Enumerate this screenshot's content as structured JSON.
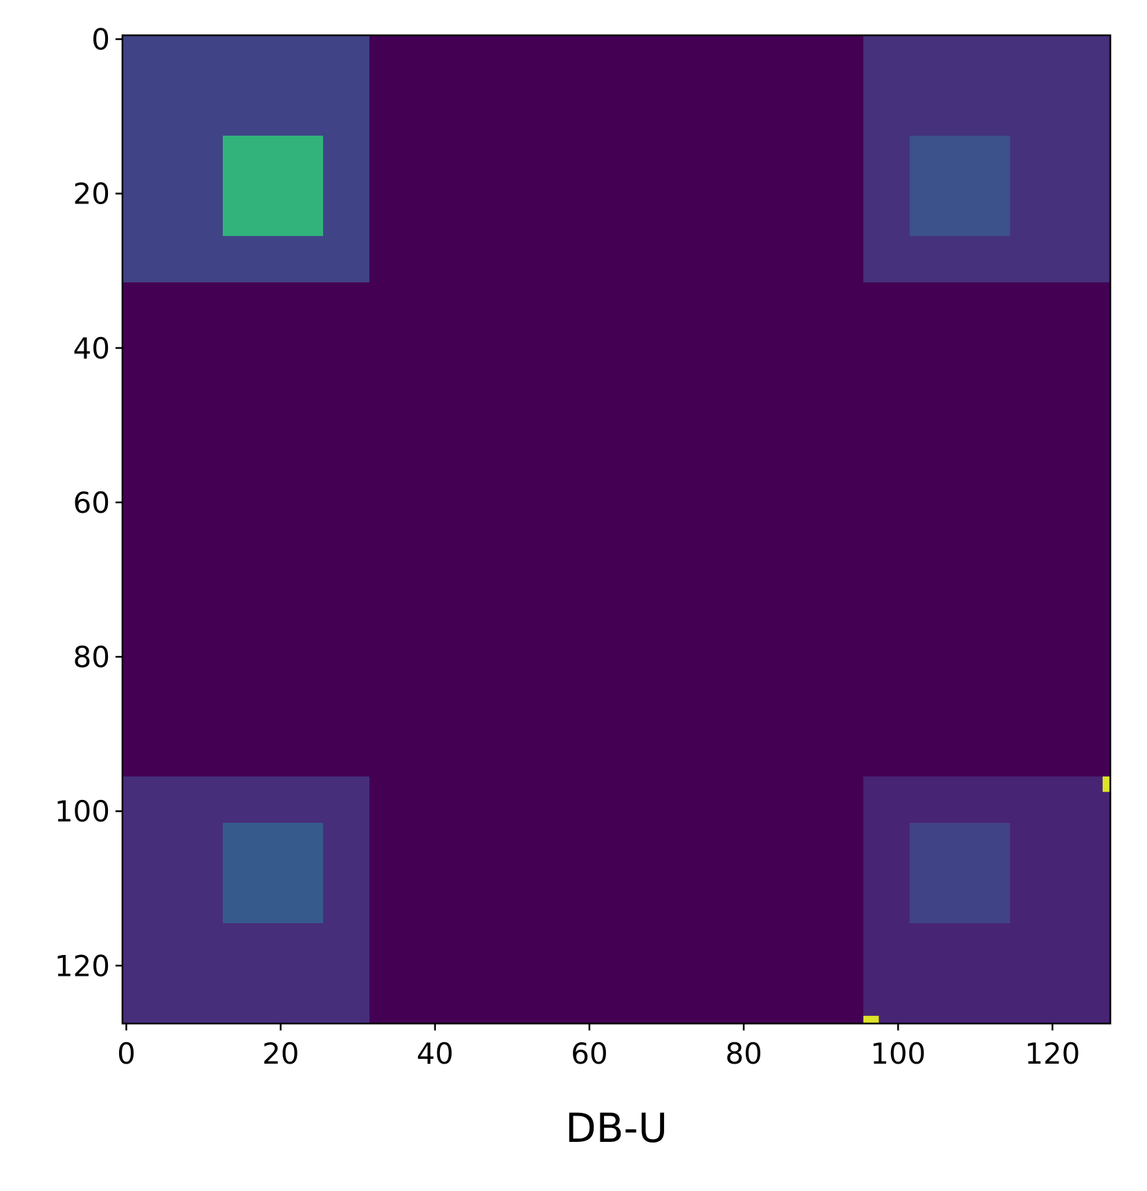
{
  "chart_data": {
    "type": "heatmap",
    "cmap": "viridis",
    "clim": [
      0,
      1
    ],
    "xlabel": "DB-U",
    "xlim": [
      -0.5,
      127.5
    ],
    "ylim": [
      127.5,
      -0.5
    ],
    "xticks": [
      0,
      20,
      40,
      60,
      80,
      100,
      120
    ],
    "yticks": [
      0,
      20,
      40,
      60,
      80,
      100,
      120
    ],
    "regions": [
      {
        "x": [
          0,
          127
        ],
        "y": [
          0,
          127
        ],
        "value": 0.0
      },
      {
        "x": [
          0,
          31
        ],
        "y": [
          0,
          31
        ],
        "value": 0.2
      },
      {
        "x": [
          13,
          25
        ],
        "y": [
          13,
          25
        ],
        "value": 0.65
      },
      {
        "x": [
          96,
          127
        ],
        "y": [
          0,
          31
        ],
        "value": 0.14
      },
      {
        "x": [
          102,
          114
        ],
        "y": [
          13,
          25
        ],
        "value": 0.25
      },
      {
        "x": [
          0,
          31
        ],
        "y": [
          96,
          127
        ],
        "value": 0.13
      },
      {
        "x": [
          13,
          25
        ],
        "y": [
          102,
          114
        ],
        "value": 0.28
      },
      {
        "x": [
          96,
          127
        ],
        "y": [
          96,
          127
        ],
        "value": 0.1
      },
      {
        "x": [
          102,
          114
        ],
        "y": [
          102,
          114
        ],
        "value": 0.2
      },
      {
        "x": [
          96,
          97
        ],
        "y": [
          127,
          127
        ],
        "value": 0.95
      },
      {
        "x": [
          127,
          127
        ],
        "y": [
          96,
          97
        ],
        "value": 0.95
      }
    ]
  }
}
